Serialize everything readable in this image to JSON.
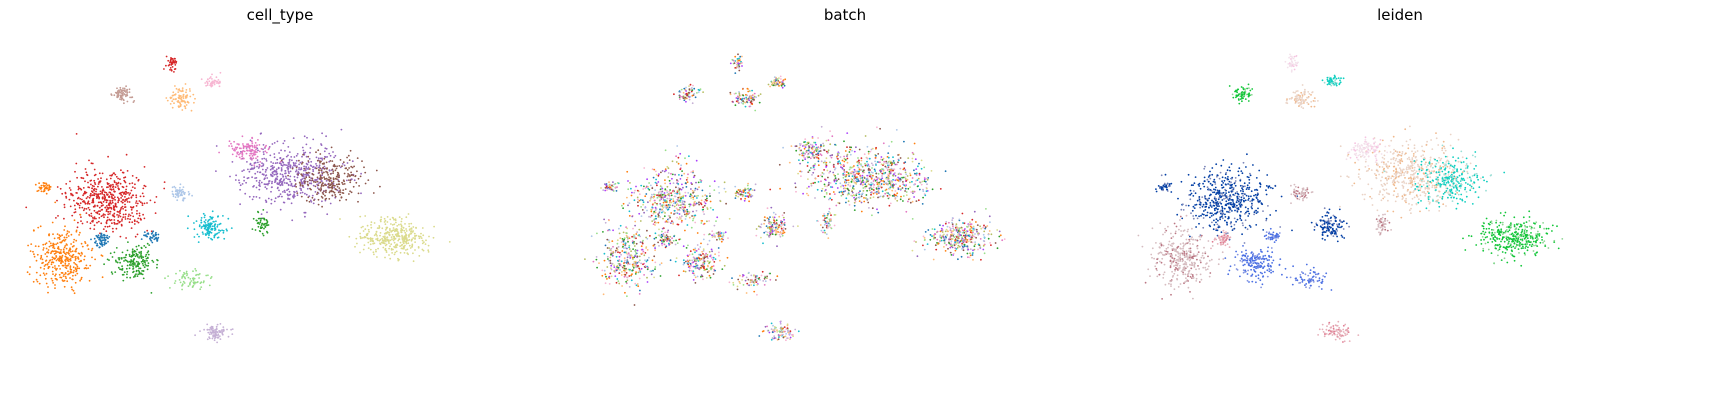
{
  "chart_data": [
    {
      "type": "scatter",
      "title": "cell_type",
      "xlabel": "",
      "ylabel": "",
      "grid": false,
      "legend": "none",
      "palette": [
        "#d62728",
        "#ff7f0e",
        "#2ca02c",
        "#1f77b4",
        "#dbdb8d",
        "#9467bd",
        "#8c564b",
        "#e377c2",
        "#17becf",
        "#aec7e8",
        "#98df8a",
        "#c5b0d5",
        "#c49c94",
        "#ffbb78",
        "#f7b6d2"
      ]
    },
    {
      "type": "scatter",
      "title": "batch",
      "xlabel": "",
      "ylabel": "",
      "grid": false,
      "legend": "none",
      "palette": [
        "#98df8a",
        "#ffbb78",
        "#d62728",
        "#9467bd",
        "#8c564b",
        "#e377c2",
        "#17becf",
        "#aec7e8",
        "#c5b0d5",
        "#f7b6d2",
        "#dbdb8d",
        "#ff7f0e",
        "#2ca02c",
        "#b5bd61",
        "#aa40fc",
        "#1f77b4"
      ]
    },
    {
      "type": "scatter",
      "title": "leiden",
      "xlabel": "",
      "ylabel": "",
      "grid": false,
      "legend": "none",
      "palette": [
        "#023fa5",
        "#7d87b9",
        "#bec1d4",
        "#d6bcc0",
        "#bb7784",
        "#8e063b",
        "#4a6fe3",
        "#8595e1",
        "#b5bbe3",
        "#e6afb9",
        "#e07b91",
        "#d33f6a",
        "#11c638",
        "#8dd593",
        "#c6dec7",
        "#ead3c6",
        "#f0b98d",
        "#ef9708",
        "#0fcfc0",
        "#9cded6",
        "#d5eae7",
        "#f3e1eb",
        "#f6c4e1",
        "#f79cd4"
      ]
    }
  ]
}
